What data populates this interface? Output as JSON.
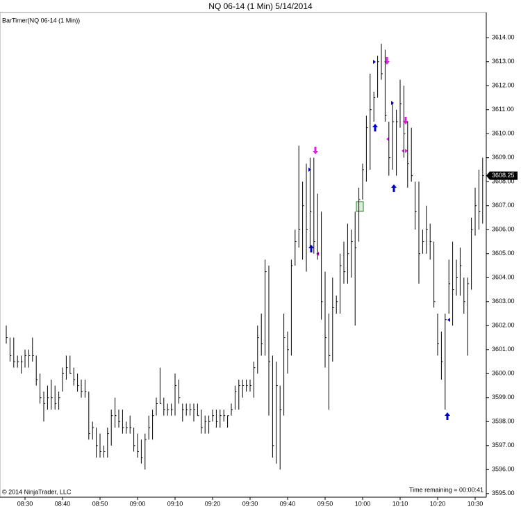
{
  "chart_data": {
    "type": "ohlc",
    "title": "NQ 06-14 (1 Min)  5/14/2014",
    "indicator_label": "BarTimer(NQ 06-14 (1 Min))",
    "copyright": "© 2014 NinjaTrader, LLC",
    "time_remaining": "Time remaining = 00:00:41",
    "categories": [
      null,
      null,
      null,
      null,
      null,
      "08:30",
      null,
      null,
      null,
      null,
      null,
      null,
      null,
      null,
      null,
      "08:40",
      null,
      null,
      null,
      null,
      null,
      null,
      null,
      null,
      null,
      "08:50",
      null,
      null,
      null,
      null,
      null,
      null,
      null,
      null,
      null,
      "09:00",
      null,
      null,
      null,
      null,
      null,
      null,
      null,
      null,
      null,
      "09:10",
      null,
      null,
      null,
      null,
      null,
      null,
      null,
      null,
      null,
      "09:20",
      null,
      null,
      null,
      null,
      null,
      null,
      null,
      null,
      null,
      "09:30",
      null,
      null,
      null,
      null,
      null,
      null,
      null,
      null,
      null,
      "09:40",
      null,
      null,
      null,
      null,
      null,
      null,
      null,
      null,
      null,
      "09:50",
      null,
      null,
      null,
      null,
      null,
      null,
      null,
      null,
      null,
      "10:00",
      null,
      null,
      null,
      null,
      null,
      null,
      null,
      null,
      null,
      "10:10",
      null,
      null,
      null,
      null,
      null,
      null,
      null,
      null,
      null,
      "10:20",
      null,
      null,
      null,
      null,
      null,
      null,
      null,
      null,
      null,
      "10:30",
      null,
      null
    ],
    "high": [
      3602.0,
      3601.5,
      3601.5,
      3600.75,
      3600.75,
      3601.0,
      3601.0,
      3601.5,
      3600.75,
      3600.0,
      3599.25,
      3599.5,
      3599.75,
      3599.5,
      3599.25,
      3600.25,
      3600.75,
      3600.75,
      3600.25,
      3600.0,
      3599.75,
      3599.75,
      3599.25,
      3598.0,
      3597.75,
      3597.5,
      3597.0,
      3597.75,
      3598.5,
      3599.0,
      3598.5,
      3598.5,
      3598.0,
      3598.25,
      3597.75,
      3597.5,
      3597.25,
      3597.5,
      3598.25,
      3598.5,
      3599.0,
      3600.25,
      3599.0,
      3598.75,
      3598.75,
      3600.0,
      3599.75,
      3598.75,
      3598.75,
      3598.75,
      3598.75,
      3598.75,
      3598.5,
      3598.25,
      3598.25,
      3598.5,
      3598.5,
      3598.5,
      3598.5,
      3598.25,
      3598.75,
      3599.5,
      3599.75,
      3599.75,
      3599.75,
      3599.75,
      3600.5,
      3602.0,
      3602.5,
      3604.75,
      3604.5,
      3600.75,
      3600.5,
      3599.5,
      3602.5,
      3601.75,
      3604.75,
      3606.0,
      3609.5,
      3608.0,
      3608.75,
      3609.0,
      3609.0,
      3607.5,
      3606.75,
      3604.25,
      3602.5,
      3604.0,
      3603.25,
      3605.0,
      3605.5,
      3606.25,
      3606.0,
      3606.75,
      3607.75,
      3608.75,
      3610.75,
      3612.5,
      3611.75,
      3613.25,
      3613.75,
      3613.5,
      3610.5,
      3611.25,
      3611.0,
      3612.25,
      3612.0,
      3610.5,
      3610.25,
      3608.0,
      3608.0,
      3606.0,
      3607.0,
      3606.25,
      3605.5,
      3602.5,
      3601.75,
      3602.5,
      3604.75,
      3605.5,
      3604.75,
      3605.25,
      3604.0,
      3604.0,
      3606.5,
      3607.75,
      3608.5,
      3609.0
    ],
    "low": [
      3601.25,
      3600.5,
      3600.25,
      3600.25,
      3600.0,
      3600.25,
      3600.25,
      3600.5,
      3599.5,
      3598.75,
      3598.0,
      3598.5,
      3598.5,
      3598.5,
      3598.5,
      3599.25,
      3599.75,
      3600.0,
      3599.5,
      3599.25,
      3599.0,
      3599.0,
      3597.25,
      3597.25,
      3596.5,
      3596.5,
      3596.5,
      3596.5,
      3597.0,
      3597.75,
      3597.75,
      3597.5,
      3597.5,
      3597.5,
      3596.75,
      3596.5,
      3596.25,
      3596.0,
      3597.25,
      3597.25,
      3598.25,
      3598.75,
      3598.25,
      3598.25,
      3598.25,
      3598.25,
      3598.75,
      3598.0,
      3598.25,
      3598.25,
      3598.0,
      3598.25,
      3597.5,
      3597.5,
      3597.5,
      3598.0,
      3597.75,
      3597.75,
      3598.0,
      3597.75,
      3598.25,
      3598.5,
      3598.5,
      3599.0,
      3599.25,
      3599.25,
      3599.0,
      3600.0,
      3600.75,
      3600.75,
      3598.25,
      3596.5,
      3596.25,
      3596.0,
      3598.25,
      3600.0,
      3600.75,
      3604.5,
      3605.25,
      3604.75,
      3604.25,
      3605.25,
      3605.0,
      3604.75,
      3602.25,
      3600.25,
      3598.5,
      3600.5,
      3602.5,
      3602.5,
      3603.75,
      3603.75,
      3604.0,
      3602.0,
      3605.5,
      3607.25,
      3608.0,
      3608.5,
      3610.5,
      3611.5,
      3612.25,
      3610.5,
      3608.25,
      3608.5,
      3608.25,
      3610.25,
      3609.0,
      3607.75,
      3608.0,
      3606.0,
      3603.75,
      3605.0,
      3605.0,
      3604.75,
      3602.75,
      3600.75,
      3599.75,
      3598.5,
      3602.5,
      3602.0,
      3603.25,
      3603.25,
      3602.5,
      3600.75,
      3603.5,
      3605.75,
      3606.0,
      3606.25
    ],
    "close": [
      3601.5,
      3600.75,
      3600.5,
      3600.5,
      3600.5,
      3600.75,
      3600.75,
      3600.75,
      3599.75,
      3599.0,
      3598.75,
      3599.0,
      3599.0,
      3598.75,
      3599.0,
      3600.0,
      3600.25,
      3600.0,
      3599.75,
      3599.5,
      3599.25,
      3599.25,
      3597.5,
      3597.75,
      3597.0,
      3596.75,
      3596.75,
      3597.5,
      3598.25,
      3598.25,
      3598.0,
      3597.75,
      3597.75,
      3597.75,
      3597.0,
      3596.75,
      3596.5,
      3597.25,
      3597.75,
      3598.25,
      3598.75,
      3598.75,
      3598.5,
      3598.5,
      3598.5,
      3599.5,
      3599.0,
      3598.5,
      3598.5,
      3598.5,
      3598.5,
      3598.25,
      3597.75,
      3598.0,
      3598.0,
      3598.25,
      3598.0,
      3598.25,
      3598.25,
      3598.25,
      3598.5,
      3599.25,
      3599.5,
      3599.5,
      3599.5,
      3599.5,
      3600.25,
      3601.5,
      3601.25,
      3604.25,
      3600.5,
      3597.0,
      3599.5,
      3598.5,
      3601.5,
      3601.0,
      3604.5,
      3605.5,
      3606.0,
      3607.0,
      3606.0,
      3606.75,
      3605.5,
      3605.0,
      3603.0,
      3601.5,
      3600.75,
      3602.75,
      3603.0,
      3604.5,
      3604.25,
      3605.0,
      3605.5,
      3605.25,
      3607.25,
      3608.5,
      3610.25,
      3611.0,
      3611.5,
      3613.0,
      3612.5,
      3610.75,
      3609.0,
      3610.5,
      3610.5,
      3611.25,
      3610.0,
      3608.75,
      3608.25,
      3606.75,
      3605.0,
      3605.5,
      3606.0,
      3605.5,
      3603.0,
      3601.25,
      3600.5,
      3602.25,
      3603.75,
      3603.5,
      3604.0,
      3604.5,
      3603.0,
      3603.75,
      3606.0,
      3607.0,
      3606.75,
      3608.25
    ],
    "color": "#000000",
    "ylim": [
      3594.85,
      3615.05
    ],
    "yticks": [
      {
        "value": 3595,
        "label": "3595.00"
      },
      {
        "value": 3596,
        "label": "3596.00"
      },
      {
        "value": 3597,
        "label": "3597.00"
      },
      {
        "value": 3598,
        "label": "3598.00"
      },
      {
        "value": 3599,
        "label": "3599.00"
      },
      {
        "value": 3600,
        "label": "3600.00"
      },
      {
        "value": 3601,
        "label": "3601.00"
      },
      {
        "value": 3602,
        "label": "3602.00"
      },
      {
        "value": 3603,
        "label": "3603.00"
      },
      {
        "value": 3604,
        "label": "3604.00"
      },
      {
        "value": 3605,
        "label": "3605.00"
      },
      {
        "value": 3606,
        "label": "3606.00"
      },
      {
        "value": 3607,
        "label": "3607.00"
      },
      {
        "value": 3608,
        "label": "3608.00"
      },
      {
        "value": 3609,
        "label": "3609.00"
      },
      {
        "value": 3610,
        "label": "3610.00"
      },
      {
        "value": 3611,
        "label": "3611.00"
      },
      {
        "value": 3612,
        "label": "3612.00"
      },
      {
        "value": 3613,
        "label": "3613.00"
      },
      {
        "value": 3614,
        "label": "3614.00"
      }
    ],
    "grid": false
  }
}
